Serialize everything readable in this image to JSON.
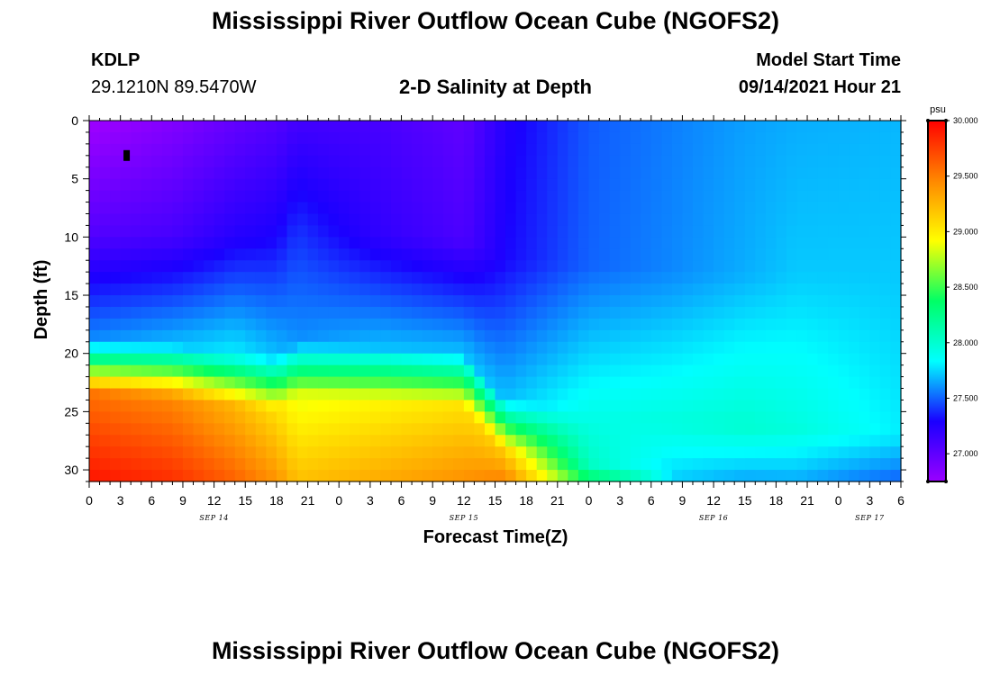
{
  "header": {
    "title": "Mississippi River Outflow Ocean Cube (NGOFS2)",
    "station_id": "KDLP",
    "station_coords": "29.1210N  89.5470W",
    "subtitle": "2-D Salinity at Depth",
    "model_label": "Model Start Time",
    "model_value": "09/14/2021 Hour 21"
  },
  "footer": {
    "title": "Mississippi River Outflow Ocean Cube (NGOFS2)"
  },
  "chart_data": {
    "type": "heatmap",
    "title": "2-D Salinity at Depth",
    "xlabel": "Forecast Time(Z)",
    "ylabel": "Depth (ft)",
    "xlim": [
      0,
      78
    ],
    "ylim": [
      31,
      0
    ],
    "x_units": "hours since 09/14/2021 00Z",
    "x_ticks": [
      0,
      3,
      6,
      9,
      12,
      15,
      18,
      21,
      24,
      27,
      30,
      33,
      36,
      39,
      42,
      45,
      48,
      51,
      54,
      57,
      60,
      63,
      66,
      69,
      72,
      75,
      78
    ],
    "x_tick_labels": [
      "0",
      "3",
      "6",
      "9",
      "12",
      "15",
      "18",
      "21",
      "0",
      "3",
      "6",
      "9",
      "12",
      "15",
      "18",
      "21",
      "0",
      "3",
      "6",
      "9",
      "12",
      "15",
      "18",
      "21",
      "0",
      "3",
      "6"
    ],
    "date_labels": [
      {
        "text": "SEP 14",
        "x": 12
      },
      {
        "text": "SEP 15",
        "x": 36
      },
      {
        "text": "SEP 16",
        "x": 60
      },
      {
        "text": "SEP 17",
        "x": 75
      }
    ],
    "y_ticks": [
      0,
      5,
      10,
      15,
      20,
      25,
      30
    ],
    "colorbar": {
      "units": "psu",
      "range": [
        26.75,
        30.0
      ],
      "ticks": [
        27.0,
        27.5,
        28.0,
        28.5,
        29.0,
        29.5,
        30.0
      ],
      "tick_labels": [
        "27.000",
        "27.500",
        "28.000",
        "28.500",
        "29.000",
        "29.500",
        "30.000"
      ],
      "colors": [
        "#9a00ff",
        "#1a00ff",
        "#00ffff",
        "#00ff66",
        "#ffff00",
        "#ff8800",
        "#ff0000"
      ]
    },
    "station_marker": {
      "time": 3.6,
      "depth": 3
    },
    "salinity_fields": {
      "x_profiles": [
        0,
        8,
        14,
        18,
        20,
        28,
        36,
        40,
        48,
        56,
        63,
        68,
        78
      ],
      "halocline_depth": [
        21.5,
        21.8,
        22.5,
        22.8,
        21.5,
        22.0,
        22.5,
        26.5,
        27.5,
        28.5,
        28.8,
        29.0,
        29.5
      ],
      "bottom_depth": [
        30.5,
        30.6,
        30.7,
        30.8,
        30.8,
        30.8,
        30.6,
        31.0,
        31.0,
        31.0,
        31.0,
        31.0,
        31.0
      ],
      "surface_salinity": [
        26.72,
        26.85,
        26.98,
        27.05,
        27.12,
        27.1,
        27.0,
        27.25,
        27.48,
        27.56,
        27.63,
        27.66,
        27.68
      ],
      "mid_salinity": [
        27.05,
        27.1,
        27.25,
        27.3,
        27.4,
        27.2,
        27.08,
        27.3,
        27.5,
        27.58,
        27.66,
        27.72,
        27.72
      ],
      "interface_salinity": [
        27.6,
        27.7,
        27.8,
        27.7,
        27.6,
        27.7,
        27.7,
        27.7,
        27.9,
        27.95,
        28.0,
        27.95,
        27.8
      ],
      "bottom_salinity": [
        29.9,
        29.8,
        29.6,
        29.4,
        29.2,
        29.3,
        29.4,
        29.5,
        28.4,
        28.1,
        28.0,
        28.0,
        27.8
      ]
    }
  }
}
